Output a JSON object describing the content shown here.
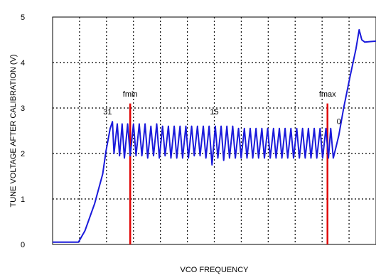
{
  "chart_data": {
    "type": "line",
    "title": "",
    "xlabel": "VCO FREQUENCY",
    "ylabel": "TUNE VOLTAGE AFTER CALIBRATION (V)",
    "ylim": [
      0,
      5
    ],
    "yticks": [
      "0",
      "1",
      "2",
      "3",
      "4",
      "5"
    ],
    "grid": true,
    "grid_style": "dotted",
    "series_color": "#1a1adb",
    "marker_color": "#e00000",
    "markers": [
      {
        "label": "fmin",
        "x": 0.24
      },
      {
        "label": "fmax",
        "x": 0.85
      }
    ],
    "annotations": [
      {
        "text": "31",
        "x": 0.17,
        "y": 2.86
      },
      {
        "text": "15",
        "x": 0.5,
        "y": 2.86
      },
      {
        "text": "0",
        "x": 0.885,
        "y": 2.65
      }
    ],
    "series": [
      {
        "points": [
          [
            0.0,
            0.05
          ],
          [
            0.08,
            0.05
          ],
          [
            0.1,
            0.3
          ],
          [
            0.13,
            0.9
          ],
          [
            0.155,
            1.55
          ],
          [
            0.165,
            2.05
          ],
          [
            0.178,
            2.55
          ],
          [
            0.185,
            2.7
          ],
          [
            0.19,
            2.0
          ],
          [
            0.2,
            2.65
          ],
          [
            0.207,
            1.95
          ],
          [
            0.215,
            2.65
          ],
          [
            0.222,
            1.9
          ],
          [
            0.232,
            2.65
          ],
          [
            0.24,
            1.95
          ],
          [
            0.25,
            2.65
          ],
          [
            0.258,
            1.95
          ],
          [
            0.268,
            2.65
          ],
          [
            0.276,
            1.95
          ],
          [
            0.286,
            2.65
          ],
          [
            0.294,
            1.9
          ],
          [
            0.304,
            2.6
          ],
          [
            0.312,
            1.95
          ],
          [
            0.322,
            2.65
          ],
          [
            0.33,
            1.9
          ],
          [
            0.34,
            2.6
          ],
          [
            0.348,
            1.95
          ],
          [
            0.358,
            2.6
          ],
          [
            0.366,
            1.9
          ],
          [
            0.376,
            2.6
          ],
          [
            0.384,
            1.9
          ],
          [
            0.394,
            2.6
          ],
          [
            0.402,
            1.9
          ],
          [
            0.412,
            2.6
          ],
          [
            0.42,
            1.9
          ],
          [
            0.43,
            2.6
          ],
          [
            0.438,
            1.95
          ],
          [
            0.448,
            2.6
          ],
          [
            0.456,
            1.95
          ],
          [
            0.466,
            2.6
          ],
          [
            0.474,
            1.9
          ],
          [
            0.484,
            2.6
          ],
          [
            0.493,
            1.75
          ],
          [
            0.503,
            2.6
          ],
          [
            0.511,
            1.9
          ],
          [
            0.521,
            2.6
          ],
          [
            0.529,
            1.85
          ],
          [
            0.539,
            2.6
          ],
          [
            0.547,
            1.9
          ],
          [
            0.557,
            2.6
          ],
          [
            0.565,
            1.9
          ],
          [
            0.575,
            2.55
          ],
          [
            0.583,
            1.9
          ],
          [
            0.593,
            2.55
          ],
          [
            0.601,
            1.9
          ],
          [
            0.611,
            2.55
          ],
          [
            0.619,
            1.9
          ],
          [
            0.629,
            2.55
          ],
          [
            0.637,
            1.9
          ],
          [
            0.647,
            2.55
          ],
          [
            0.655,
            1.9
          ],
          [
            0.665,
            2.55
          ],
          [
            0.673,
            1.9
          ],
          [
            0.683,
            2.55
          ],
          [
            0.691,
            1.9
          ],
          [
            0.701,
            2.55
          ],
          [
            0.709,
            1.9
          ],
          [
            0.719,
            2.55
          ],
          [
            0.727,
            1.9
          ],
          [
            0.737,
            2.55
          ],
          [
            0.745,
            1.9
          ],
          [
            0.755,
            2.55
          ],
          [
            0.763,
            1.9
          ],
          [
            0.773,
            2.55
          ],
          [
            0.781,
            1.9
          ],
          [
            0.791,
            2.55
          ],
          [
            0.799,
            1.9
          ],
          [
            0.809,
            2.55
          ],
          [
            0.817,
            1.9
          ],
          [
            0.827,
            2.55
          ],
          [
            0.835,
            1.9
          ],
          [
            0.845,
            2.55
          ],
          [
            0.853,
            1.9
          ],
          [
            0.86,
            2.55
          ],
          [
            0.868,
            1.9
          ],
          [
            0.875,
            2.1
          ],
          [
            0.885,
            2.4
          ],
          [
            0.9,
            3.0
          ],
          [
            0.92,
            3.7
          ],
          [
            0.938,
            4.3
          ],
          [
            0.948,
            4.72
          ],
          [
            0.956,
            4.5
          ],
          [
            0.965,
            4.45
          ],
          [
            0.98,
            4.46
          ],
          [
            1.0,
            4.47
          ]
        ]
      }
    ]
  }
}
